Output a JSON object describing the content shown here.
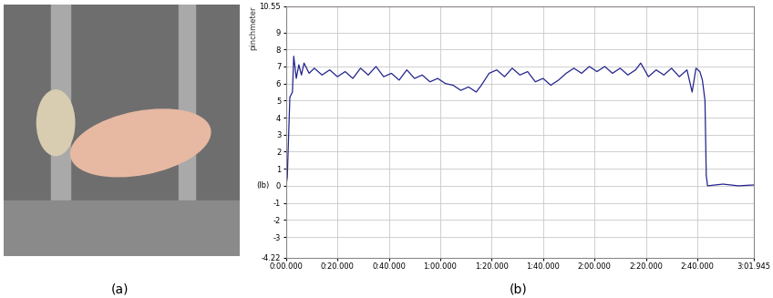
{
  "figure": {
    "captions": [
      "(a)",
      "(b)"
    ]
  },
  "chart_data": {
    "type": "line",
    "y_label": "(lb)",
    "x": [
      0,
      0.5,
      1.5,
      2.5,
      3,
      4,
      5,
      6,
      7,
      9,
      11,
      14,
      17,
      20,
      23,
      26,
      29,
      32,
      35,
      38,
      41,
      44,
      47,
      50,
      53,
      56,
      59,
      62,
      65,
      68,
      71,
      74,
      76,
      79,
      82,
      85,
      88,
      91,
      94,
      97,
      100,
      103,
      106,
      109,
      112,
      115,
      118,
      121,
      124,
      127,
      130,
      133,
      136,
      138,
      141,
      144,
      147,
      150,
      153,
      156,
      158,
      159.5,
      161,
      162,
      163,
      163.5,
      164,
      170,
      176,
      181.9
    ],
    "series": [
      {
        "name": "pinchmeter",
        "color": "#23238c",
        "values": [
          0.0,
          0.5,
          5.2,
          5.5,
          7.6,
          6.3,
          7.1,
          6.5,
          7.2,
          6.6,
          6.9,
          6.5,
          6.8,
          6.4,
          6.7,
          6.3,
          6.9,
          6.5,
          7.0,
          6.4,
          6.6,
          6.2,
          6.8,
          6.3,
          6.5,
          6.1,
          6.3,
          6.0,
          5.9,
          5.6,
          5.8,
          5.5,
          5.9,
          6.6,
          6.8,
          6.4,
          6.9,
          6.5,
          6.7,
          6.1,
          6.3,
          5.9,
          6.2,
          6.6,
          6.9,
          6.6,
          7.0,
          6.7,
          7.0,
          6.6,
          6.9,
          6.5,
          6.8,
          7.2,
          6.4,
          6.8,
          6.5,
          6.9,
          6.4,
          6.8,
          5.5,
          6.9,
          6.7,
          6.2,
          5.0,
          0.6,
          0.0,
          0.1,
          0.0,
          0.05
        ]
      }
    ],
    "xlim": [
      0,
      181.945
    ],
    "xticks": [
      {
        "value": 0,
        "label": "0:00.000"
      },
      {
        "value": 20,
        "label": "0:20.000"
      },
      {
        "value": 40,
        "label": "0:40.000"
      },
      {
        "value": 60,
        "label": "1:00.000"
      },
      {
        "value": 80,
        "label": "1:20.000"
      },
      {
        "value": 100,
        "label": "1:40.000"
      },
      {
        "value": 120,
        "label": "2:00.000"
      },
      {
        "value": 140,
        "label": "2:20.000"
      },
      {
        "value": 160,
        "label": "2:40.000"
      },
      {
        "value": 181.945,
        "label": "3:01.945"
      }
    ],
    "ylim": [
      -4.22,
      10.55
    ],
    "yticks": [
      -4.22,
      -3,
      -2,
      -1,
      0,
      1,
      2,
      3,
      4,
      5,
      6,
      7,
      8,
      9,
      10.55
    ],
    "limit_line": {
      "value": 10.55,
      "color": "#e8211d"
    },
    "grid": true
  }
}
